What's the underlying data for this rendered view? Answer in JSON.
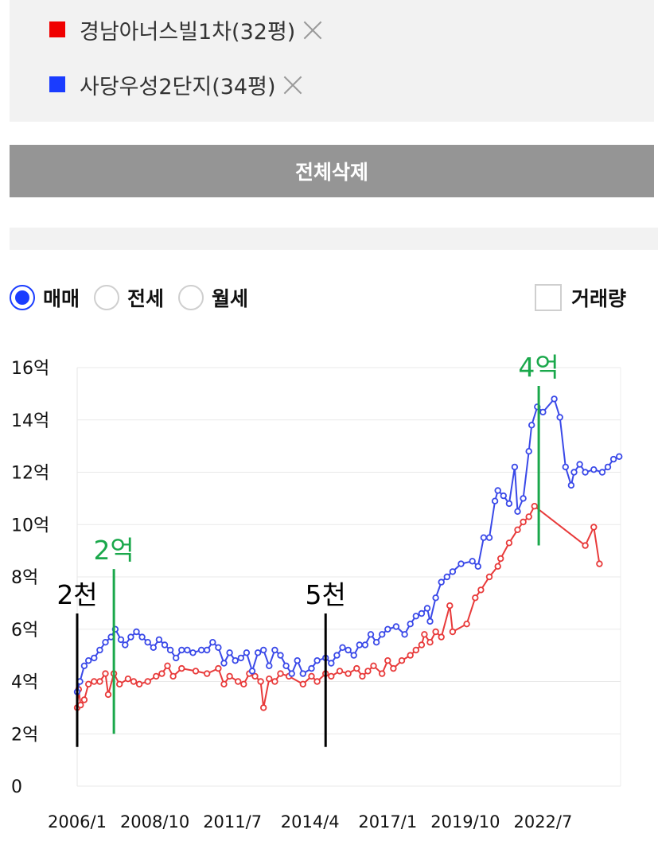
{
  "legend": {
    "items": [
      {
        "label": "경남아너스빌1차(32평)",
        "color": "#f00000"
      },
      {
        "label": "사당우성2단지(34평)",
        "color": "#1a3cff"
      }
    ]
  },
  "delete_all_label": "전체삭제",
  "filters": {
    "options": [
      "매매",
      "전세",
      "월세"
    ],
    "selected": "매매",
    "volume_label": "거래량",
    "volume_checked": false
  },
  "chart_data": {
    "type": "line",
    "title": "",
    "xlabel": "",
    "ylabel": "",
    "x_tick_labels": [
      "2006/1",
      "2008/10",
      "2011/7",
      "2014/4",
      "2017/1",
      "2019/10",
      "2022/7"
    ],
    "x_range": [
      2006.0,
      2025.25
    ],
    "y_tick_labels": [
      "0",
      "2억",
      "4억",
      "6억",
      "8억",
      "10억",
      "12억",
      "14억",
      "16억"
    ],
    "ylim": [
      0,
      16
    ],
    "y_unit": "억",
    "grid": true,
    "series": [
      {
        "name": "경남아너스빌1차(32평)",
        "color": "#e83a3a",
        "points": [
          [
            2006.0,
            3.0
          ],
          [
            2006.05,
            3.7
          ],
          [
            2006.12,
            3.1
          ],
          [
            2006.25,
            3.3
          ],
          [
            2006.4,
            3.9
          ],
          [
            2006.6,
            4.0
          ],
          [
            2006.8,
            4.0
          ],
          [
            2007.0,
            4.3
          ],
          [
            2007.1,
            3.5
          ],
          [
            2007.3,
            4.3
          ],
          [
            2007.5,
            3.9
          ],
          [
            2007.8,
            4.1
          ],
          [
            2008.0,
            4.0
          ],
          [
            2008.2,
            3.9
          ],
          [
            2008.5,
            4.0
          ],
          [
            2008.8,
            4.2
          ],
          [
            2009.0,
            4.3
          ],
          [
            2009.2,
            4.6
          ],
          [
            2009.4,
            4.2
          ],
          [
            2009.7,
            4.5
          ],
          [
            2010.2,
            4.4
          ],
          [
            2010.6,
            4.3
          ],
          [
            2011.0,
            4.5
          ],
          [
            2011.2,
            3.9
          ],
          [
            2011.4,
            4.2
          ],
          [
            2011.7,
            4.0
          ],
          [
            2011.9,
            3.9
          ],
          [
            2012.1,
            4.3
          ],
          [
            2012.3,
            4.2
          ],
          [
            2012.5,
            4.0
          ],
          [
            2012.6,
            3.0
          ],
          [
            2012.8,
            4.1
          ],
          [
            2013.0,
            4.0
          ],
          [
            2013.2,
            4.3
          ],
          [
            2013.5,
            4.2
          ],
          [
            2014.0,
            3.9
          ],
          [
            2014.3,
            4.2
          ],
          [
            2014.5,
            4.0
          ],
          [
            2014.8,
            4.3
          ],
          [
            2015.0,
            4.2
          ],
          [
            2015.3,
            4.4
          ],
          [
            2015.6,
            4.3
          ],
          [
            2015.9,
            4.5
          ],
          [
            2016.1,
            4.2
          ],
          [
            2016.3,
            4.4
          ],
          [
            2016.5,
            4.6
          ],
          [
            2016.8,
            4.3
          ],
          [
            2017.0,
            4.8
          ],
          [
            2017.2,
            4.5
          ],
          [
            2017.5,
            4.8
          ],
          [
            2017.8,
            5.0
          ],
          [
            2018.0,
            5.2
          ],
          [
            2018.2,
            5.4
          ],
          [
            2018.3,
            5.8
          ],
          [
            2018.5,
            5.5
          ],
          [
            2018.7,
            5.9
          ],
          [
            2018.9,
            5.7
          ],
          [
            2019.2,
            6.9
          ],
          [
            2019.3,
            5.9
          ],
          [
            2019.8,
            6.2
          ],
          [
            2020.1,
            7.2
          ],
          [
            2020.3,
            7.5
          ],
          [
            2020.6,
            8.0
          ],
          [
            2020.9,
            8.4
          ],
          [
            2021.0,
            8.7
          ],
          [
            2021.3,
            9.3
          ],
          [
            2021.6,
            9.8
          ],
          [
            2021.8,
            10.1
          ],
          [
            2022.0,
            10.3
          ],
          [
            2022.2,
            10.7
          ],
          [
            2024.0,
            9.2
          ],
          [
            2024.3,
            9.9
          ],
          [
            2024.5,
            8.5
          ]
        ]
      },
      {
        "name": "사당우성2단지(34평)",
        "color": "#3a49e8",
        "points": [
          [
            2006.0,
            3.6
          ],
          [
            2006.1,
            4.0
          ],
          [
            2006.25,
            4.6
          ],
          [
            2006.4,
            4.8
          ],
          [
            2006.6,
            4.9
          ],
          [
            2006.8,
            5.2
          ],
          [
            2007.0,
            5.5
          ],
          [
            2007.2,
            5.7
          ],
          [
            2007.35,
            6.0
          ],
          [
            2007.55,
            5.6
          ],
          [
            2007.7,
            5.4
          ],
          [
            2007.9,
            5.7
          ],
          [
            2008.1,
            5.9
          ],
          [
            2008.3,
            5.7
          ],
          [
            2008.5,
            5.5
          ],
          [
            2008.7,
            5.3
          ],
          [
            2008.9,
            5.6
          ],
          [
            2009.1,
            5.4
          ],
          [
            2009.3,
            5.2
          ],
          [
            2009.5,
            4.9
          ],
          [
            2009.7,
            5.2
          ],
          [
            2009.9,
            5.2
          ],
          [
            2010.1,
            5.1
          ],
          [
            2010.4,
            5.2
          ],
          [
            2010.6,
            5.2
          ],
          [
            2010.8,
            5.5
          ],
          [
            2011.0,
            5.3
          ],
          [
            2011.2,
            4.7
          ],
          [
            2011.4,
            5.1
          ],
          [
            2011.6,
            4.8
          ],
          [
            2011.8,
            4.9
          ],
          [
            2012.0,
            5.1
          ],
          [
            2012.2,
            4.4
          ],
          [
            2012.4,
            5.1
          ],
          [
            2012.6,
            5.2
          ],
          [
            2012.8,
            4.6
          ],
          [
            2013.0,
            5.2
          ],
          [
            2013.2,
            5.0
          ],
          [
            2013.4,
            4.6
          ],
          [
            2013.6,
            4.3
          ],
          [
            2013.8,
            4.8
          ],
          [
            2014.0,
            4.3
          ],
          [
            2014.3,
            4.5
          ],
          [
            2014.5,
            4.8
          ],
          [
            2014.8,
            4.9
          ],
          [
            2015.0,
            4.7
          ],
          [
            2015.2,
            5.0
          ],
          [
            2015.4,
            5.3
          ],
          [
            2015.6,
            5.2
          ],
          [
            2015.8,
            5.0
          ],
          [
            2016.0,
            5.4
          ],
          [
            2016.2,
            5.4
          ],
          [
            2016.4,
            5.8
          ],
          [
            2016.6,
            5.5
          ],
          [
            2016.8,
            5.8
          ],
          [
            2017.0,
            6.0
          ],
          [
            2017.3,
            6.1
          ],
          [
            2017.6,
            5.8
          ],
          [
            2017.8,
            6.2
          ],
          [
            2018.0,
            6.5
          ],
          [
            2018.2,
            6.6
          ],
          [
            2018.4,
            6.8
          ],
          [
            2018.5,
            6.3
          ],
          [
            2018.7,
            7.2
          ],
          [
            2018.9,
            7.8
          ],
          [
            2019.1,
            8.0
          ],
          [
            2019.3,
            8.2
          ],
          [
            2019.6,
            8.5
          ],
          [
            2020.0,
            8.6
          ],
          [
            2020.2,
            8.4
          ],
          [
            2020.4,
            9.5
          ],
          [
            2020.6,
            9.5
          ],
          [
            2020.8,
            10.9
          ],
          [
            2020.9,
            11.3
          ],
          [
            2021.1,
            11.1
          ],
          [
            2021.3,
            10.8
          ],
          [
            2021.5,
            12.2
          ],
          [
            2021.6,
            10.5
          ],
          [
            2021.8,
            11.0
          ],
          [
            2022.0,
            12.8
          ],
          [
            2022.1,
            13.8
          ],
          [
            2022.3,
            14.5
          ],
          [
            2022.5,
            14.3
          ],
          [
            2022.9,
            14.8
          ],
          [
            2023.1,
            14.1
          ],
          [
            2023.3,
            12.2
          ],
          [
            2023.5,
            11.5
          ],
          [
            2023.6,
            12.0
          ],
          [
            2023.8,
            12.3
          ],
          [
            2024.0,
            12.0
          ],
          [
            2024.3,
            12.1
          ],
          [
            2024.6,
            12.0
          ],
          [
            2024.8,
            12.2
          ],
          [
            2025.0,
            12.5
          ],
          [
            2025.2,
            12.6
          ]
        ]
      }
    ],
    "annotations": [
      {
        "text": "2천",
        "color": "#000000",
        "x": 2006.0,
        "y_from": 1.5,
        "y_to": 6.6
      },
      {
        "text": "2억",
        "color": "#1aa84b",
        "x": 2007.3,
        "y_from": 2.0,
        "y_to": 8.3
      },
      {
        "text": "5천",
        "color": "#000000",
        "x": 2014.8,
        "y_from": 1.5,
        "y_to": 6.6
      },
      {
        "text": "4억",
        "color": "#1aa84b",
        "x": 2022.35,
        "y_from": 9.2,
        "y_to": 15.3
      }
    ]
  }
}
